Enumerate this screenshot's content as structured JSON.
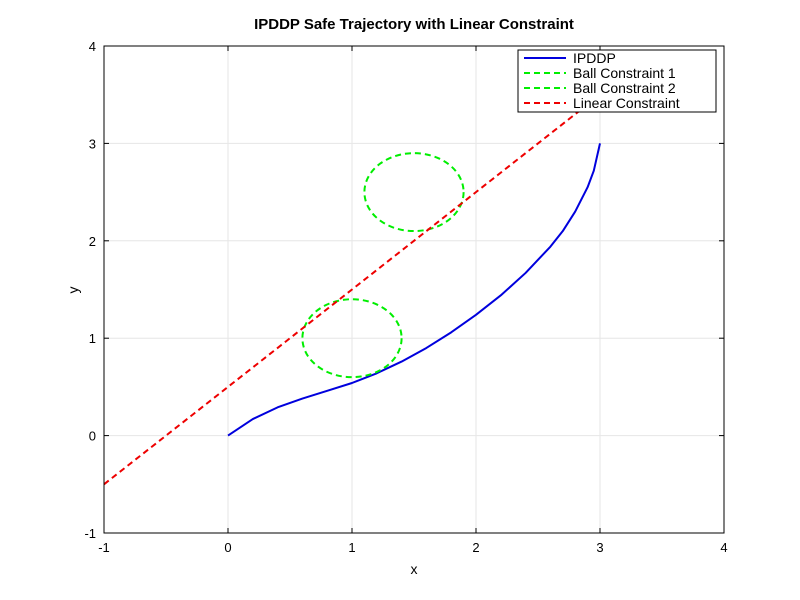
{
  "chart_data": {
    "type": "line",
    "title": "IPDDP Safe Trajectory with Linear Constraint",
    "xlabel": "x",
    "ylabel": "y",
    "xlim": [
      -1,
      4
    ],
    "ylim": [
      -1,
      4
    ],
    "xticks": [
      -1,
      0,
      1,
      2,
      3,
      4
    ],
    "yticks": [
      -1,
      0,
      1,
      2,
      3,
      4
    ],
    "grid": true,
    "legend_position": "top-right",
    "series": [
      {
        "name": "IPDDP",
        "color": "#0000dd",
        "style": "solid",
        "x": [
          0,
          0.2,
          0.4,
          0.6,
          0.8,
          1.0,
          1.2,
          1.4,
          1.6,
          1.8,
          2.0,
          2.2,
          2.4,
          2.6,
          2.7,
          2.8,
          2.9,
          2.95,
          3.0
        ],
        "y": [
          0,
          0.17,
          0.29,
          0.38,
          0.46,
          0.54,
          0.64,
          0.76,
          0.9,
          1.06,
          1.24,
          1.44,
          1.67,
          1.94,
          2.1,
          2.3,
          2.55,
          2.72,
          3.0
        ]
      },
      {
        "name": "Ball Constraint 1",
        "color": "#00ee00",
        "style": "dashed",
        "shape": "circle",
        "center": [
          1,
          1
        ],
        "radius": 0.4
      },
      {
        "name": "Ball Constraint 2",
        "color": "#00ee00",
        "style": "dashed",
        "shape": "circle",
        "center": [
          1.5,
          2.5
        ],
        "radius": 0.4
      },
      {
        "name": "Linear Constraint",
        "color": "#ee0000",
        "style": "dashed",
        "x": [
          -1,
          3.45
        ],
        "y": [
          -0.5,
          3.95
        ]
      }
    ]
  }
}
